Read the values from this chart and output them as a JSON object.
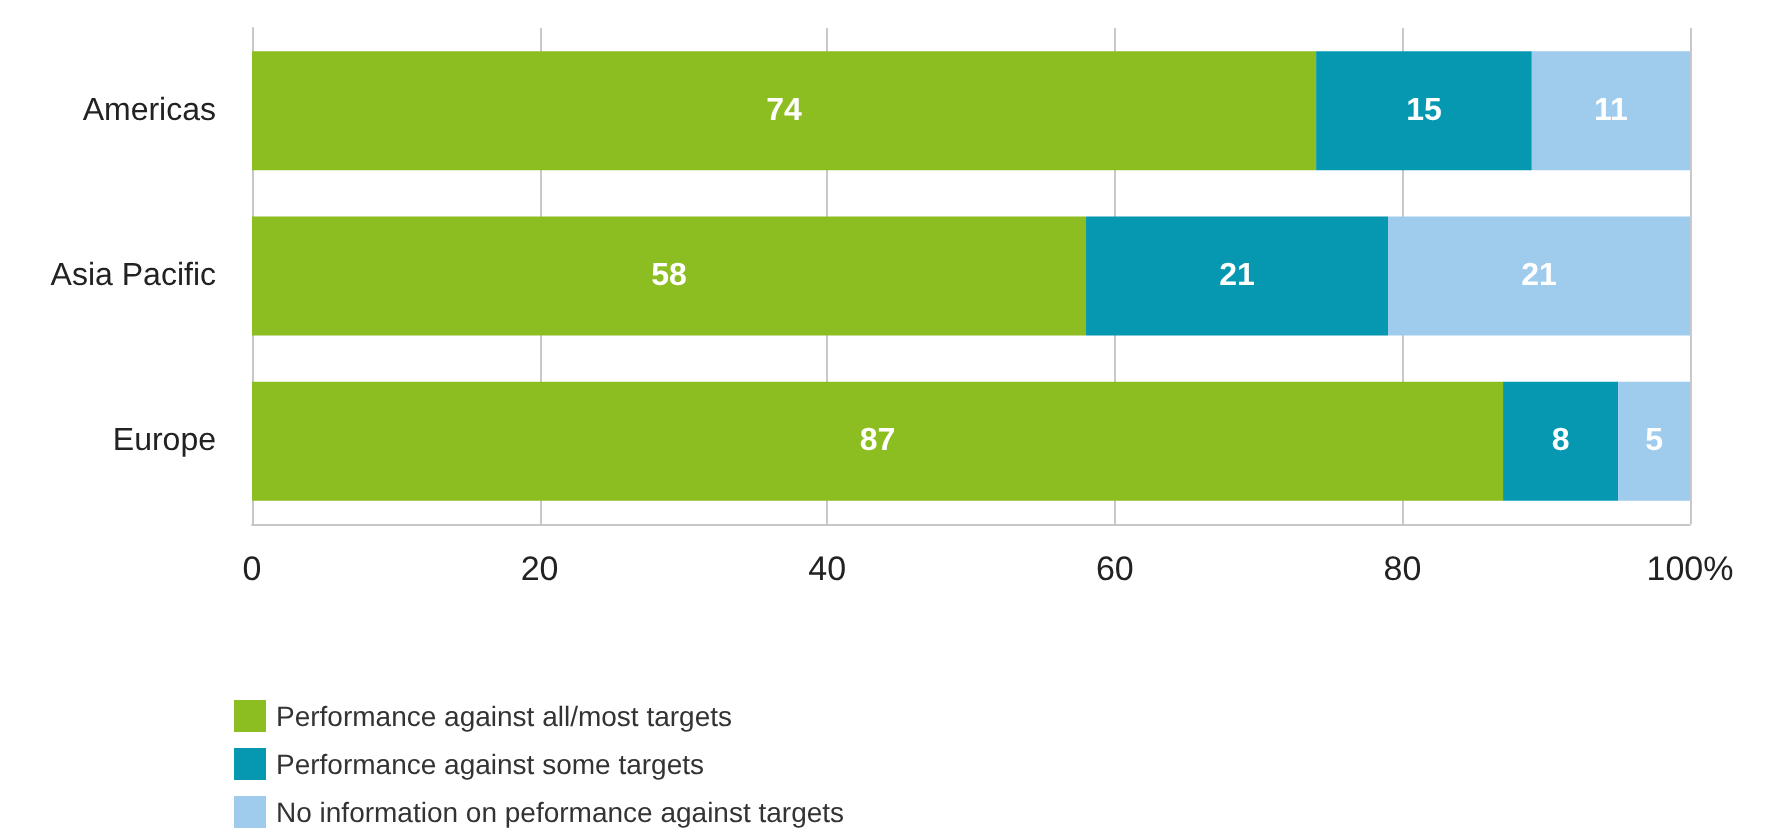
{
  "chart_data": {
    "type": "bar",
    "orientation": "horizontal",
    "stacked": true,
    "categories": [
      "Americas",
      "Asia Pacific",
      "Europe"
    ],
    "series": [
      {
        "name": "Performance against all/most targets",
        "color": "#8cbe22",
        "values": [
          74,
          58,
          87
        ]
      },
      {
        "name": "Performance against some targets",
        "color": "#0598b0",
        "values": [
          15,
          21,
          8
        ]
      },
      {
        "name": "No information on peformance against targets",
        "color": "#9fcbed",
        "values": [
          11,
          21,
          5
        ]
      }
    ],
    "xlim": [
      0,
      100
    ],
    "xticks": [
      0,
      20,
      40,
      60,
      80,
      {
        "value": 100,
        "label": "100%"
      }
    ],
    "grid": "x",
    "legend": "bottom left",
    "data_labels": true
  }
}
